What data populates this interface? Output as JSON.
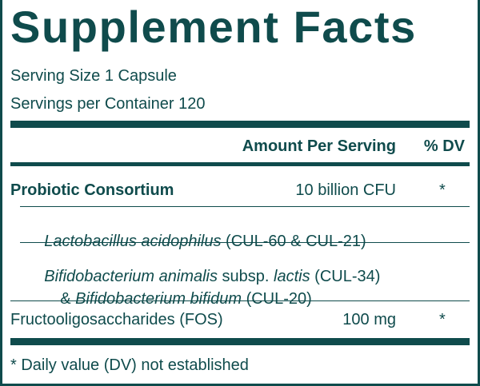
{
  "title": "Supplement Facts",
  "serving_size": "Serving Size 1 Capsule",
  "servings_per_container": "Servings per Container 120",
  "header": {
    "amount": "Amount Per Serving",
    "dv": "% DV"
  },
  "rows": [
    {
      "name": "Probiotic Consortium",
      "amount": "10 billion CFU",
      "dv": "*"
    },
    {
      "parts": [
        {
          "text": "Lactobacillus acidophilus",
          "italic": true
        },
        {
          "text": " (CUL-60 & CUL-21)",
          "italic": false
        }
      ]
    },
    {
      "parts": [
        {
          "text": "Bifidobacterium animalis",
          "italic": true
        },
        {
          "text": " subsp. ",
          "italic": false
        },
        {
          "text": "lactis",
          "italic": true
        },
        {
          "text": " (CUL-34)",
          "italic": false
        }
      ],
      "parts2": [
        {
          "text": "& ",
          "italic": false
        },
        {
          "text": "Bifidobacterium bifidum",
          "italic": true
        },
        {
          "text": " (CUL-20)",
          "italic": false
        }
      ]
    },
    {
      "name": "Fructooligosaccharides (FOS)",
      "amount": "100 mg",
      "dv": "*"
    }
  ],
  "footnote": "* Daily value (DV) not established"
}
